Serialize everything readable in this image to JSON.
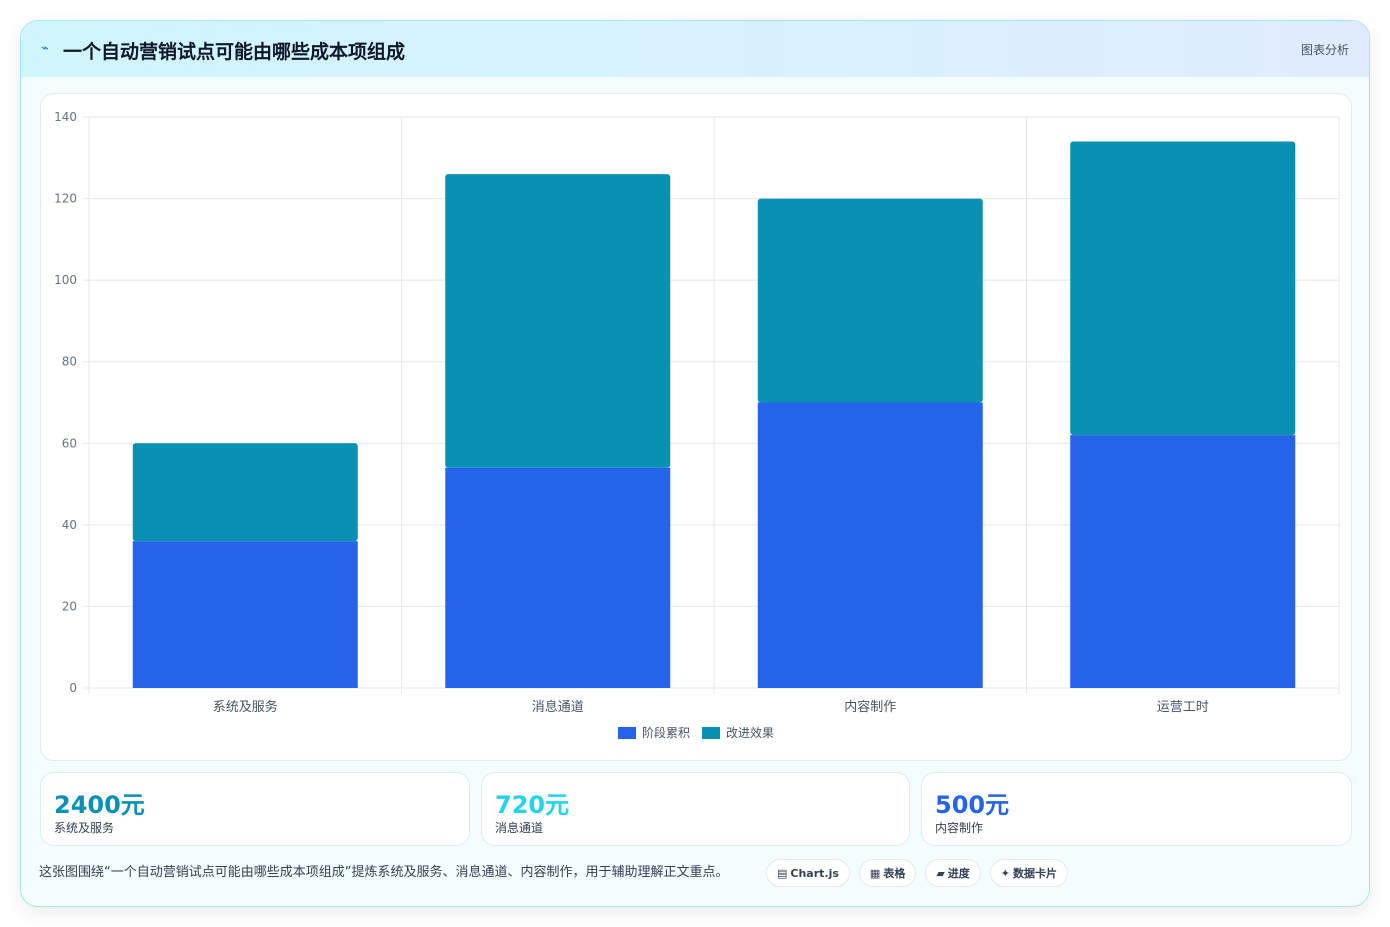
{
  "header": {
    "icon": "⌁",
    "title": "一个自动营销试点可能由哪些成本项组成",
    "badge": "图表分析"
  },
  "chart_data": {
    "type": "bar",
    "stacked": true,
    "categories": [
      "系统及服务",
      "消息通道",
      "内容制作",
      "运营工时"
    ],
    "series": [
      {
        "name": "阶段累积",
        "values": [
          36,
          54,
          70,
          62
        ],
        "color": "#2563eb"
      },
      {
        "name": "改进效果",
        "values": [
          24,
          72,
          50,
          72
        ],
        "color": "#0891b2"
      }
    ],
    "ylim": [
      0,
      140
    ],
    "yticks": [
      0,
      20,
      40,
      60,
      80,
      100,
      120,
      140
    ],
    "grid": true,
    "legend_position": "bottom"
  },
  "stats": [
    {
      "value": "2400元",
      "label": "系统及服务",
      "color": "#0891b2"
    },
    {
      "value": "720元",
      "label": "消息通道",
      "color": "#22d3ee"
    },
    {
      "value": "500元",
      "label": "内容制作",
      "color": "#2563eb"
    }
  ],
  "summary": "这张图围绕“一个自动营销试点可能由哪些成本项组成”提炼系统及服务、消息通道、内容制作，用于辅助理解正文重点。",
  "tags": [
    {
      "icon": "▤",
      "label": "Chart.js"
    },
    {
      "icon": "▦",
      "label": "表格"
    },
    {
      "icon": "▰",
      "label": "进度"
    },
    {
      "icon": "✦",
      "label": "数据卡片"
    }
  ]
}
